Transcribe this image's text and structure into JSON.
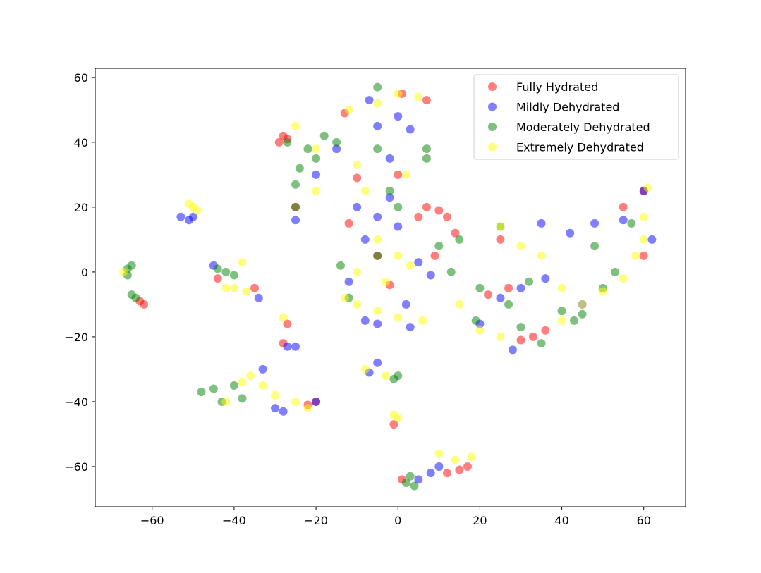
{
  "chart_data": {
    "type": "scatter",
    "legend": "upper right",
    "alpha": 0.5,
    "xlim": [
      -73.9,
      70.2
    ],
    "ylim": [
      -72.4,
      62.8
    ],
    "xticks": [
      {
        "value": -60,
        "label": "−60"
      },
      {
        "value": -40,
        "label": "−40"
      },
      {
        "value": -20,
        "label": "−20"
      },
      0,
      20,
      40,
      60
    ],
    "yticks": [
      {
        "value": -60,
        "label": "−60"
      },
      {
        "value": -40,
        "label": "−40"
      },
      {
        "value": -20,
        "label": "−20"
      },
      0,
      20,
      40,
      60
    ],
    "series": [
      {
        "name": "Fully Hydrated",
        "color": "red",
        "x": [
          -28,
          -29,
          -27,
          -13,
          -27,
          -28,
          -44,
          -63,
          -62,
          -35,
          -22,
          -20,
          -1,
          1,
          12,
          15,
          17,
          7,
          5,
          10,
          12,
          14,
          -12,
          -5,
          30,
          33,
          36,
          25,
          60,
          55,
          -10,
          0,
          7,
          1,
          9,
          -2,
          27,
          22,
          60,
          -25
        ],
        "y": [
          42,
          40,
          41,
          49,
          -16,
          -22,
          -2,
          -9,
          -10,
          -5,
          -41,
          -40,
          -47,
          -64,
          -62,
          -61,
          -60,
          20,
          17,
          19,
          17,
          12,
          15,
          5,
          -21,
          -20,
          -18,
          10,
          25,
          20,
          29,
          30,
          53,
          55,
          5,
          -4,
          -5,
          -7,
          5,
          20
        ]
      },
      {
        "name": "Mildly Dehydrated",
        "color": "blue",
        "x": [
          -53,
          -51,
          -50,
          -27,
          -25,
          -45,
          -34,
          -30,
          -28,
          -33,
          -20,
          -5,
          -7,
          8,
          5,
          10,
          -12,
          -8,
          -5,
          2,
          -5,
          0,
          -7,
          3,
          -15,
          -2,
          -20,
          -10,
          -5,
          -2,
          0,
          5,
          8,
          35,
          42,
          48,
          55,
          62,
          60,
          28,
          30,
          25,
          36,
          45,
          -25,
          20,
          3,
          -8
        ],
        "y": [
          17,
          16,
          17,
          -23,
          -23,
          2,
          -8,
          -42,
          -43,
          -30,
          -40,
          -28,
          -31,
          -62,
          -64,
          -60,
          -3,
          -15,
          -16,
          -10,
          45,
          48,
          53,
          44,
          38,
          35,
          30,
          20,
          17,
          23,
          14,
          3,
          -1,
          15,
          12,
          15,
          16,
          10,
          25,
          -24,
          -5,
          -8,
          -2,
          -10,
          16,
          -16,
          -17,
          10
        ]
      },
      {
        "name": "Moderately Dehydrated",
        "color": "green",
        "x": [
          -66,
          -66,
          -65,
          -65,
          -64,
          -44,
          -42,
          -40,
          -48,
          -45,
          -43,
          -40,
          -38,
          -25,
          -25,
          -24,
          -22,
          -18,
          -15,
          -27,
          -20,
          -5,
          -5,
          7,
          7,
          0,
          -1,
          3,
          2,
          4,
          10,
          15,
          -5,
          0,
          -14,
          13,
          20,
          27,
          30,
          32,
          40,
          45,
          50,
          53,
          57,
          48,
          43,
          35,
          19,
          25,
          -2,
          -12
        ],
        "y": [
          1,
          -1,
          2,
          -7,
          -8,
          1,
          0,
          -1,
          -37,
          -36,
          -40,
          -35,
          -39,
          20,
          27,
          32,
          38,
          42,
          40,
          40,
          35,
          57,
          38,
          38,
          35,
          -32,
          -33,
          -63,
          -65,
          -66,
          8,
          10,
          5,
          20,
          2,
          0,
          -5,
          -10,
          -17,
          -3,
          -12,
          -13,
          -5,
          0,
          15,
          8,
          -15,
          -22,
          -15,
          14,
          25,
          -8
        ]
      },
      {
        "name": "Extremely Dehydrated",
        "color": "yellow",
        "x": [
          -51,
          -50,
          -49,
          -67,
          -38,
          -40,
          -37,
          -42,
          -28,
          -33,
          -36,
          -30,
          -38,
          -25,
          -22,
          -42,
          -8,
          -3,
          -1,
          0,
          10,
          14,
          18,
          -25,
          -20,
          -12,
          -5,
          0,
          5,
          -10,
          -8,
          -5,
          0,
          3,
          -10,
          -5,
          0,
          6,
          -10,
          -13,
          15,
          20,
          25,
          25,
          30,
          40,
          40,
          45,
          50,
          55,
          58,
          60,
          60,
          61,
          35,
          -20,
          -3,
          2
        ],
        "y": [
          21,
          20,
          19,
          0,
          3,
          -5,
          -6,
          -5,
          -14,
          -35,
          -32,
          -38,
          -34,
          -40,
          -42,
          -40,
          -30,
          -32,
          -44,
          -45,
          -56,
          -58,
          -57,
          45,
          38,
          50,
          52,
          55,
          54,
          33,
          25,
          10,
          5,
          2,
          -10,
          -12,
          -14,
          -15,
          0,
          -8,
          -10,
          -18,
          -20,
          14,
          8,
          -5,
          -15,
          -10,
          -6,
          -2,
          5,
          10,
          17,
          26,
          5,
          25,
          -3,
          30
        ]
      }
    ]
  }
}
